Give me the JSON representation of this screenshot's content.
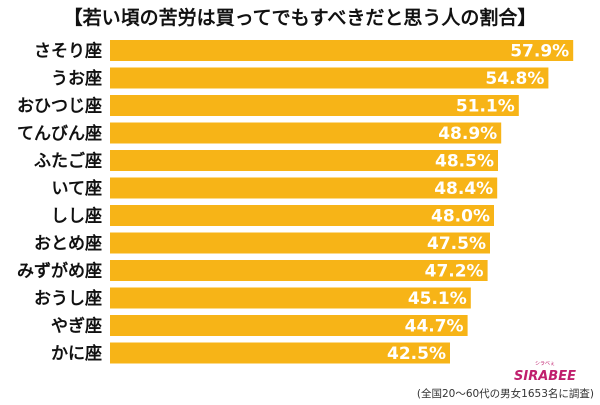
{
  "chart_data": {
    "type": "bar",
    "orientation": "horizontal",
    "title": "【若い頃の苦労は買ってでもすべきだと思う人の割合】",
    "categories": [
      "さそり座",
      "うお座",
      "おひつじ座",
      "てんびん座",
      "ふたご座",
      "いて座",
      "しし座",
      "おとめ座",
      "みずがめ座",
      "おうし座",
      "やぎ座",
      "かに座"
    ],
    "values": [
      57.9,
      54.8,
      51.1,
      48.9,
      48.5,
      48.4,
      48.0,
      47.5,
      47.2,
      45.1,
      44.7,
      42.5
    ],
    "value_labels": [
      "57.9%",
      "54.8%",
      "51.1%",
      "48.9%",
      "48.5%",
      "48.4%",
      "48.0%",
      "47.5%",
      "47.2%",
      "45.1%",
      "44.7%",
      "42.5%"
    ],
    "xlim": [
      0,
      60
    ],
    "bar_color": "#f7b417",
    "label_color": "#ffffff",
    "xlabel": "",
    "ylabel": "",
    "grid": false,
    "legend": "none"
  },
  "footnote": "(全国20～60代の男女1653名に調査)",
  "logo": {
    "text": "SIRABEE",
    "tagline": "シラベぇ",
    "color": "#c0206e"
  }
}
